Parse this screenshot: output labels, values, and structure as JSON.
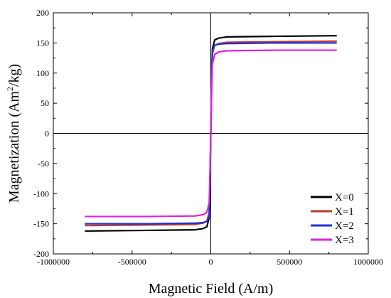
{
  "chart_data": {
    "type": "line",
    "xlabel": "Magnetic Field (A/m)",
    "ylabel_main": "Magnetization (Am",
    "ylabel_sup": "2",
    "ylabel_tail": "/kg)",
    "xlim": [
      -1000000,
      1000000
    ],
    "ylim": [
      -200,
      200
    ],
    "x_ticks": [
      -1000000,
      -500000,
      0,
      500000,
      1000000
    ],
    "x_tick_labels": [
      "-1000000",
      "-500000",
      "0",
      "500000",
      "1000000"
    ],
    "y_ticks": [
      -200,
      -150,
      -100,
      -50,
      0,
      50,
      100,
      150,
      200
    ],
    "y_tick_labels": [
      "-200",
      "-150",
      "-100",
      "-50",
      "0",
      "50",
      "100",
      "150",
      "200"
    ],
    "grid": false,
    "zero_lines": true,
    "legend_position": "bottom-right",
    "series": [
      {
        "name": "X=0",
        "color": "#000000",
        "x": [
          -800000,
          -400000,
          -100000,
          -50000,
          -25000,
          -10000,
          -5000,
          0,
          5000,
          10000,
          25000,
          50000,
          100000,
          400000,
          800000
        ],
        "y": [
          -162,
          -161,
          -160,
          -158,
          -155,
          -140,
          -80,
          0,
          80,
          140,
          155,
          158,
          160,
          161,
          162
        ]
      },
      {
        "name": "X=1",
        "color": "#c0392b",
        "x": [
          -800000,
          -400000,
          -100000,
          -50000,
          -25000,
          -10000,
          -5000,
          0,
          5000,
          10000,
          25000,
          50000,
          100000,
          400000,
          800000
        ],
        "y": [
          -153,
          -152,
          -151,
          -149,
          -146,
          -132,
          -75,
          0,
          75,
          132,
          146,
          149,
          151,
          152,
          153
        ]
      },
      {
        "name": "X=2",
        "color": "#1f2ed8",
        "x": [
          -800000,
          -400000,
          -100000,
          -50000,
          -25000,
          -10000,
          -5000,
          0,
          5000,
          10000,
          25000,
          50000,
          100000,
          400000,
          800000
        ],
        "y": [
          -150,
          -150,
          -149,
          -148,
          -146,
          -138,
          -80,
          0,
          80,
          138,
          146,
          148,
          149,
          150,
          150
        ]
      },
      {
        "name": "X=3",
        "color": "#e020e0",
        "x": [
          -800000,
          -400000,
          -100000,
          -50000,
          -25000,
          -10000,
          -5000,
          0,
          5000,
          10000,
          25000,
          50000,
          100000,
          400000,
          800000
        ],
        "y": [
          -138,
          -138,
          -137,
          -135,
          -131,
          -115,
          -65,
          0,
          65,
          115,
          131,
          135,
          137,
          138,
          138
        ]
      }
    ]
  }
}
